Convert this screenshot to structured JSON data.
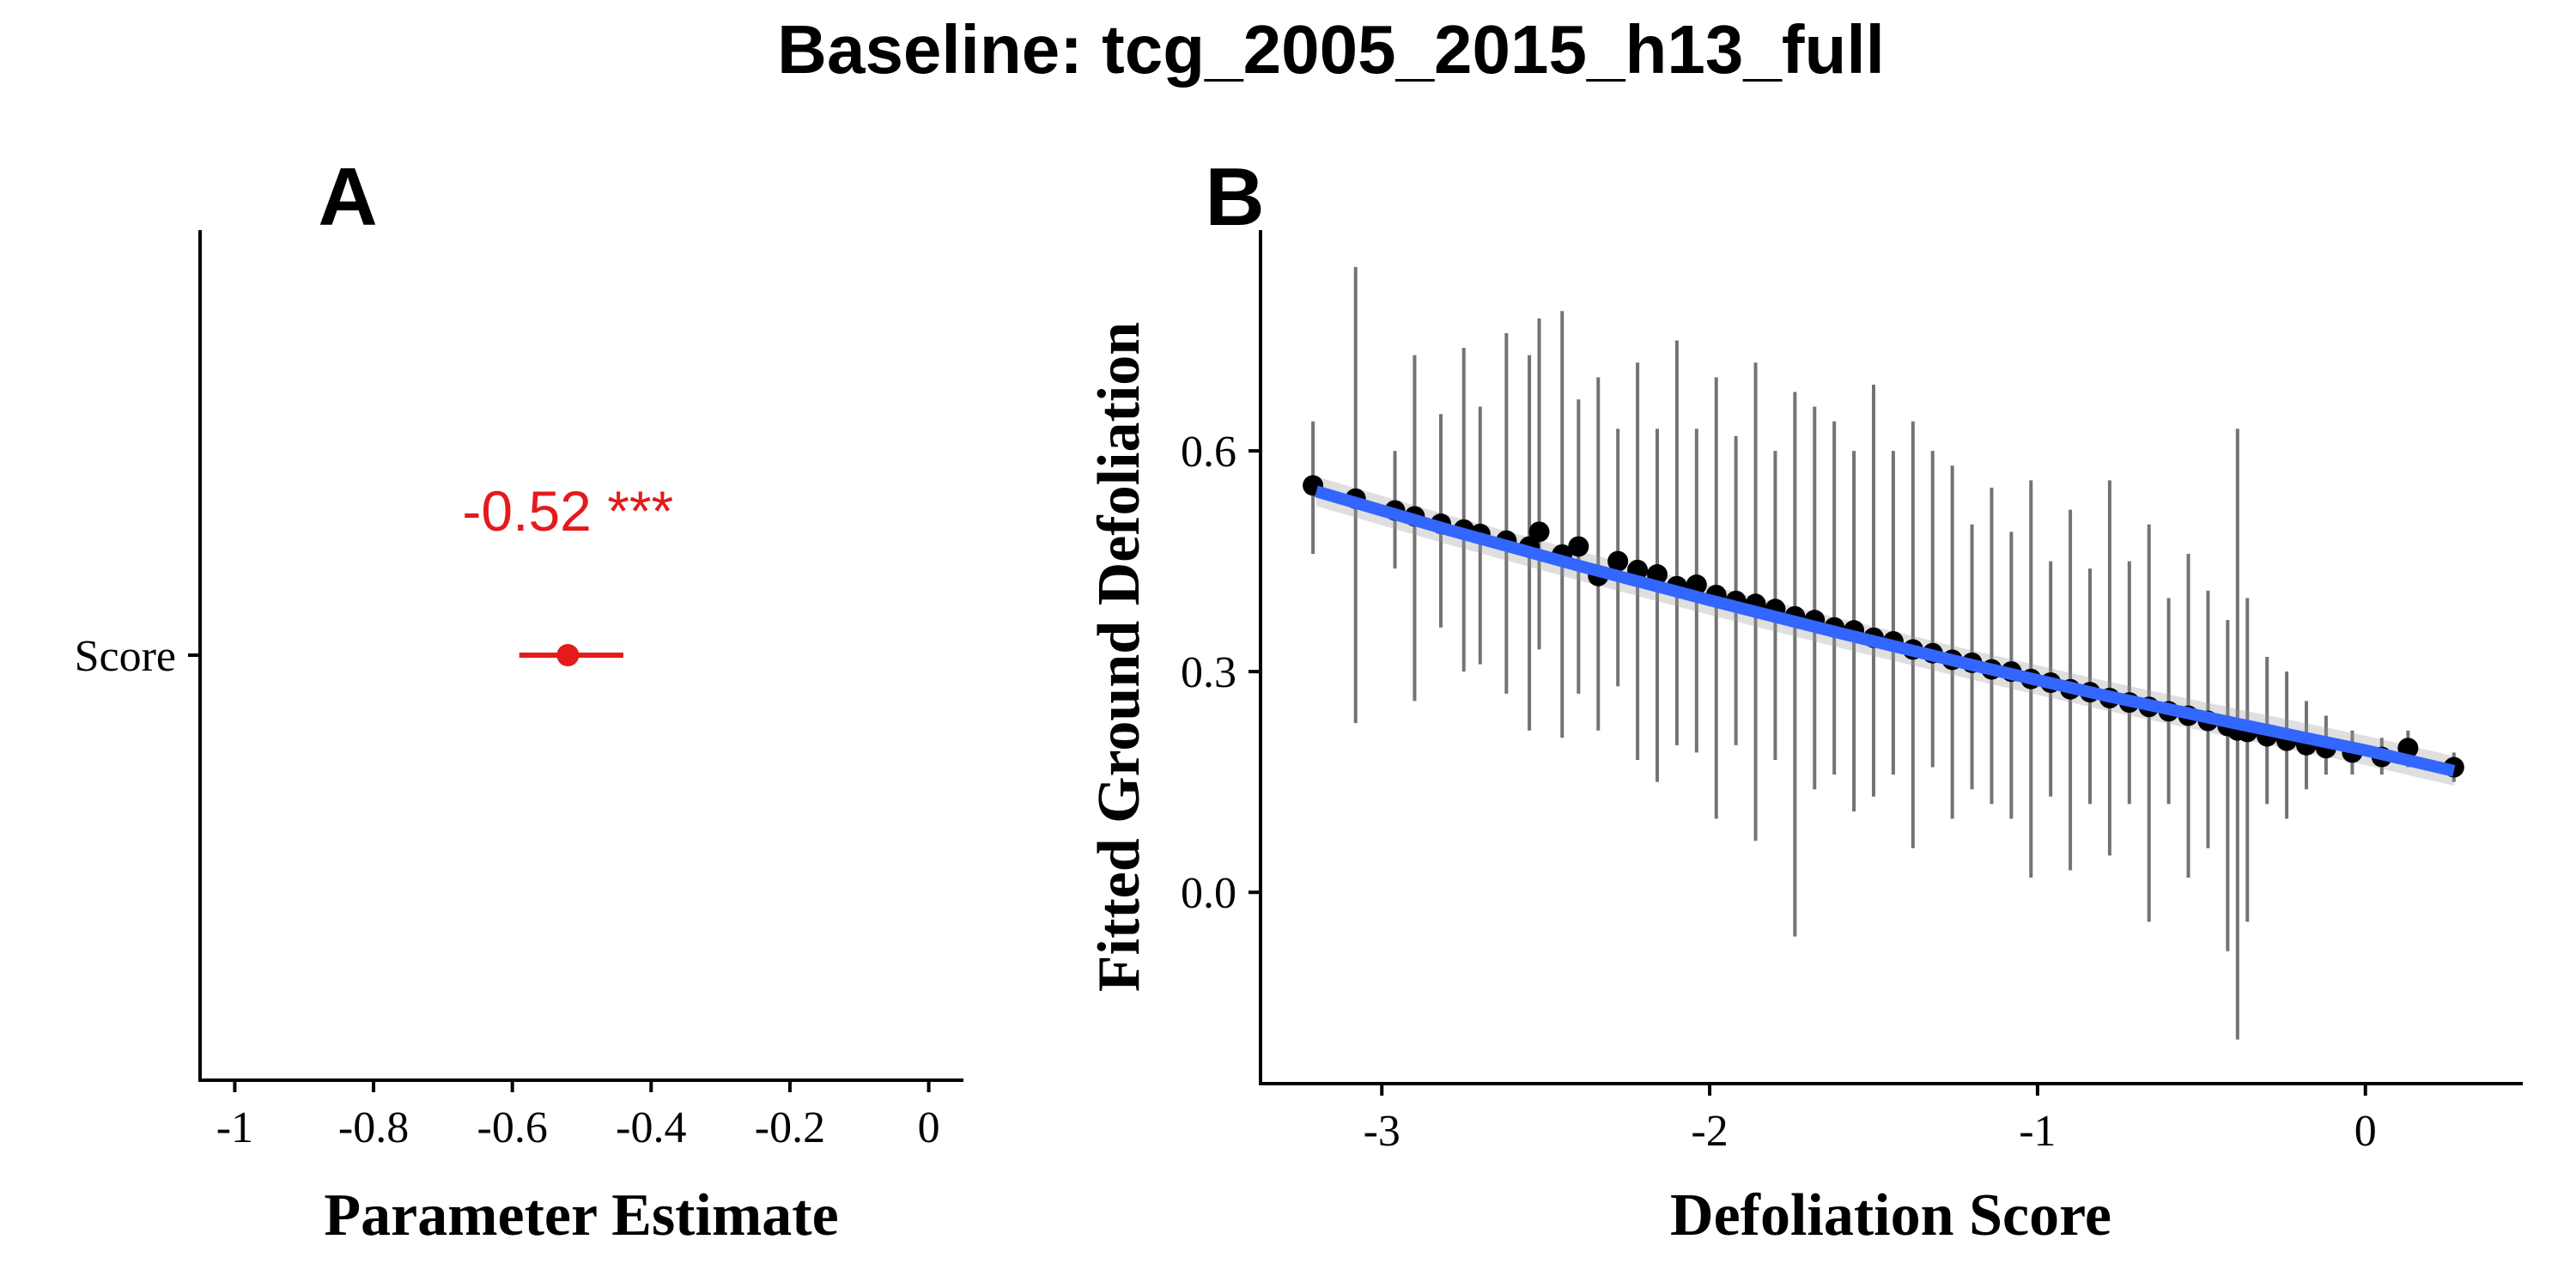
{
  "figure": {
    "title": "Baseline: tcg_2005_2015_h13_full"
  },
  "chart_data": [
    {
      "panel": "A",
      "type": "scatter",
      "xlabel": "Parameter Estimate",
      "ylabel": "",
      "xlim": [
        -1.05,
        0.05
      ],
      "xticks": [
        -1,
        -0.8,
        -0.6,
        -0.4,
        -0.2,
        0
      ],
      "xtick_labels": [
        "-1",
        "-0.8",
        "-0.6",
        "-0.4",
        "-0.2",
        "0"
      ],
      "categories": [
        "Score"
      ],
      "points": [
        {
          "category": "Score",
          "estimate": -0.52,
          "ci_low": -0.59,
          "ci_high": -0.44,
          "label": "-0.52 ***"
        }
      ],
      "color": "#e41a1c",
      "grid": false,
      "legend": "none"
    },
    {
      "panel": "B",
      "type": "scatter",
      "xlabel": "Defoliation Score",
      "ylabel": "Fitted Ground Defoliation",
      "xlim": [
        -3.37,
        0.48
      ],
      "ylim": [
        -0.26,
        0.9
      ],
      "xticks": [
        -3,
        -2,
        -1,
        0
      ],
      "xtick_labels": [
        "-3",
        "-2",
        "-1",
        "0"
      ],
      "yticks": [
        0.0,
        0.3,
        0.6
      ],
      "ytick_labels": [
        "0.0",
        "0.3",
        "0.6"
      ],
      "points": [
        {
          "x": -3.21,
          "y": 0.553,
          "lo": 0.46,
          "hi": 0.64
        },
        {
          "x": -3.08,
          "y": 0.535,
          "lo": 0.23,
          "hi": 0.85
        },
        {
          "x": -2.96,
          "y": 0.519,
          "lo": 0.44,
          "hi": 0.6
        },
        {
          "x": -2.9,
          "y": 0.511,
          "lo": 0.26,
          "hi": 0.73
        },
        {
          "x": -2.82,
          "y": 0.501,
          "lo": 0.36,
          "hi": 0.65
        },
        {
          "x": -2.75,
          "y": 0.493,
          "lo": 0.3,
          "hi": 0.74
        },
        {
          "x": -2.7,
          "y": 0.487,
          "lo": 0.31,
          "hi": 0.66
        },
        {
          "x": -2.62,
          "y": 0.478,
          "lo": 0.27,
          "hi": 0.76
        },
        {
          "x": -2.55,
          "y": 0.47,
          "lo": 0.22,
          "hi": 0.73
        },
        {
          "x": -2.52,
          "y": 0.49,
          "lo": 0.33,
          "hi": 0.78
        },
        {
          "x": -2.45,
          "y": 0.459,
          "lo": 0.21,
          "hi": 0.79
        },
        {
          "x": -2.4,
          "y": 0.47,
          "lo": 0.27,
          "hi": 0.67
        },
        {
          "x": -2.34,
          "y": 0.43,
          "lo": 0.22,
          "hi": 0.7
        },
        {
          "x": -2.28,
          "y": 0.45,
          "lo": 0.28,
          "hi": 0.63
        },
        {
          "x": -2.22,
          "y": 0.438,
          "lo": 0.18,
          "hi": 0.72
        },
        {
          "x": -2.16,
          "y": 0.432,
          "lo": 0.15,
          "hi": 0.63
        },
        {
          "x": -2.1,
          "y": 0.416,
          "lo": 0.2,
          "hi": 0.75
        },
        {
          "x": -2.04,
          "y": 0.418,
          "lo": 0.19,
          "hi": 0.63
        },
        {
          "x": -1.98,
          "y": 0.404,
          "lo": 0.1,
          "hi": 0.7
        },
        {
          "x": -1.92,
          "y": 0.396,
          "lo": 0.2,
          "hi": 0.62
        },
        {
          "x": -1.86,
          "y": 0.392,
          "lo": 0.07,
          "hi": 0.72
        },
        {
          "x": -1.8,
          "y": 0.385,
          "lo": 0.18,
          "hi": 0.6
        },
        {
          "x": -1.74,
          "y": 0.375,
          "lo": -0.06,
          "hi": 0.68
        },
        {
          "x": -1.68,
          "y": 0.37,
          "lo": 0.14,
          "hi": 0.66
        },
        {
          "x": -1.62,
          "y": 0.36,
          "lo": 0.16,
          "hi": 0.64
        },
        {
          "x": -1.56,
          "y": 0.356,
          "lo": 0.11,
          "hi": 0.6
        },
        {
          "x": -1.5,
          "y": 0.346,
          "lo": 0.13,
          "hi": 0.69
        },
        {
          "x": -1.44,
          "y": 0.341,
          "lo": 0.16,
          "hi": 0.6
        },
        {
          "x": -1.38,
          "y": 0.33,
          "lo": 0.06,
          "hi": 0.64
        },
        {
          "x": -1.32,
          "y": 0.325,
          "lo": 0.17,
          "hi": 0.6
        },
        {
          "x": -1.26,
          "y": 0.316,
          "lo": 0.1,
          "hi": 0.58
        },
        {
          "x": -1.2,
          "y": 0.312,
          "lo": 0.14,
          "hi": 0.5
        },
        {
          "x": -1.14,
          "y": 0.303,
          "lo": 0.12,
          "hi": 0.55
        },
        {
          "x": -1.08,
          "y": 0.3,
          "lo": 0.1,
          "hi": 0.49
        },
        {
          "x": -1.02,
          "y": 0.29,
          "lo": 0.02,
          "hi": 0.56
        },
        {
          "x": -0.96,
          "y": 0.285,
          "lo": 0.13,
          "hi": 0.45
        },
        {
          "x": -0.9,
          "y": 0.276,
          "lo": 0.03,
          "hi": 0.52
        },
        {
          "x": -0.84,
          "y": 0.272,
          "lo": 0.12,
          "hi": 0.44
        },
        {
          "x": -0.78,
          "y": 0.264,
          "lo": 0.05,
          "hi": 0.56
        },
        {
          "x": -0.72,
          "y": 0.258,
          "lo": 0.12,
          "hi": 0.45
        },
        {
          "x": -0.66,
          "y": 0.252,
          "lo": -0.04,
          "hi": 0.5
        },
        {
          "x": -0.6,
          "y": 0.246,
          "lo": 0.12,
          "hi": 0.4
        },
        {
          "x": -0.54,
          "y": 0.24,
          "lo": 0.02,
          "hi": 0.46
        },
        {
          "x": -0.48,
          "y": 0.233,
          "lo": 0.06,
          "hi": 0.41
        },
        {
          "x": -0.42,
          "y": 0.226,
          "lo": -0.08,
          "hi": 0.37
        },
        {
          "x": -0.39,
          "y": 0.22,
          "lo": -0.2,
          "hi": 0.63
        },
        {
          "x": -0.36,
          "y": 0.218,
          "lo": -0.04,
          "hi": 0.4
        },
        {
          "x": -0.3,
          "y": 0.212,
          "lo": 0.12,
          "hi": 0.32
        },
        {
          "x": -0.24,
          "y": 0.206,
          "lo": 0.1,
          "hi": 0.3
        },
        {
          "x": -0.18,
          "y": 0.2,
          "lo": 0.14,
          "hi": 0.26
        },
        {
          "x": -0.12,
          "y": 0.196,
          "lo": 0.16,
          "hi": 0.24
        },
        {
          "x": -0.04,
          "y": 0.19,
          "lo": 0.16,
          "hi": 0.22
        },
        {
          "x": 0.05,
          "y": 0.184,
          "lo": 0.16,
          "hi": 0.21
        },
        {
          "x": 0.13,
          "y": 0.196,
          "lo": 0.17,
          "hi": 0.22
        },
        {
          "x": 0.27,
          "y": 0.17,
          "lo": 0.15,
          "hi": 0.19
        }
      ],
      "fit": {
        "x": [
          -3.2,
          -2.8,
          -2.4,
          -2.0,
          -1.6,
          -1.2,
          -0.8,
          -0.4,
          0.0,
          0.27
        ],
        "y": [
          0.545,
          0.493,
          0.444,
          0.397,
          0.352,
          0.309,
          0.268,
          0.23,
          0.193,
          0.165
        ],
        "band": 0.02,
        "color": "#3366ff"
      },
      "point_color": "#000000",
      "grid": false,
      "legend": "none"
    }
  ]
}
